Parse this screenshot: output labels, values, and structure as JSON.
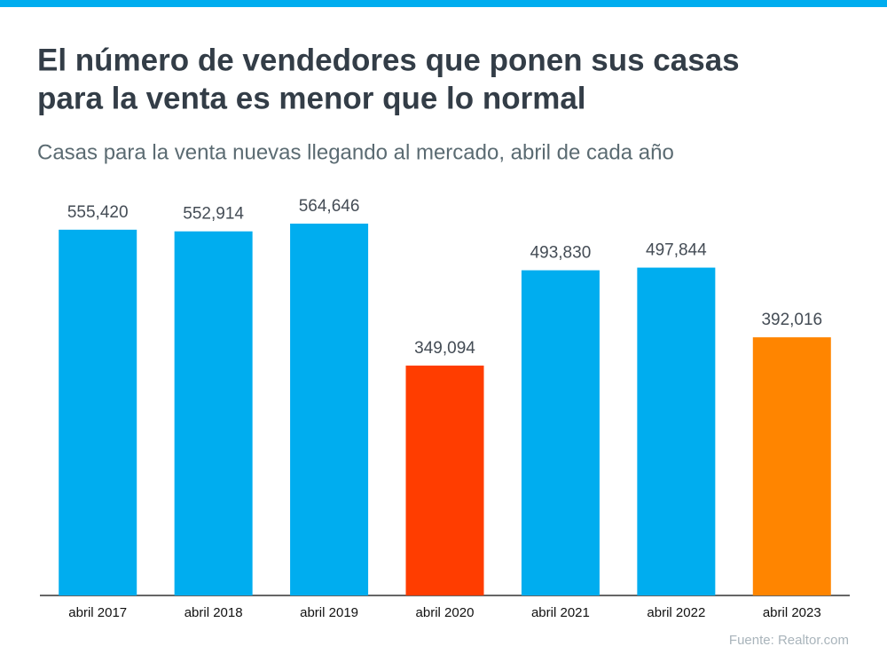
{
  "chart_data": {
    "type": "bar",
    "title": "El número de vendedores que ponen sus casas para la venta es menor que lo normal",
    "subtitle": "Casas para la venta nuevas llegando al mercado, abril de cada año",
    "categories": [
      "abril 2017",
      "abril 2018",
      "abril 2019",
      "abril 2020",
      "abril 2021",
      "abril 2022",
      "abril 2023"
    ],
    "values": [
      555420,
      552914,
      564646,
      349094,
      493830,
      497844,
      392016
    ],
    "value_labels": [
      "555,420",
      "552,914",
      "564,646",
      "349,094",
      "493,830",
      "497,844",
      "392,016"
    ],
    "colors": [
      "#00adef",
      "#00adef",
      "#00adef",
      "#ff3d00",
      "#00adef",
      "#00adef",
      "#ff8500"
    ],
    "source": "Fuente: Realtor.com"
  }
}
